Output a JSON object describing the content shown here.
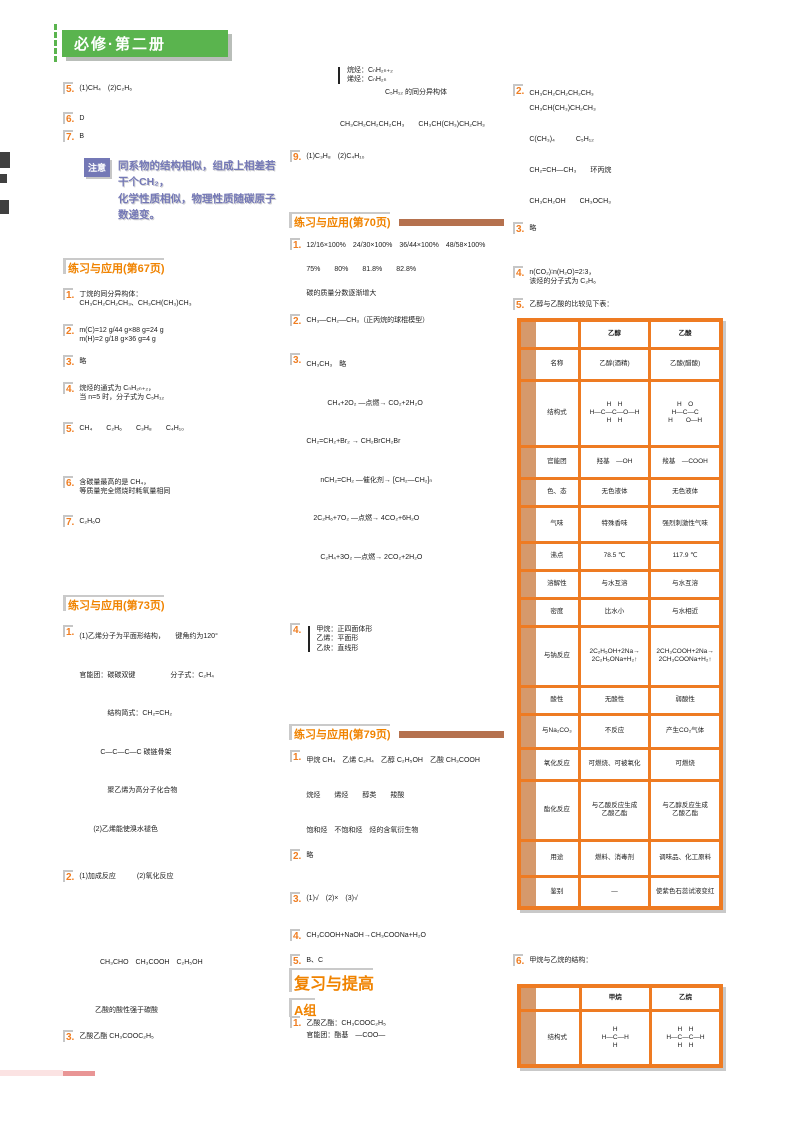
{
  "banner": {
    "title": "必修·第二册"
  },
  "colors": {
    "green": "#5ab44e",
    "orange": "#f07d20",
    "header_orange": "#f08300",
    "purple": "#7478b6",
    "table_border": "#ee7b22",
    "tan": "#d6996b",
    "bar_brown": "#b5714e"
  },
  "left": {
    "top_items": [
      {
        "num": "5.",
        "text": "(1)CH₄　(2)C₂H₆"
      },
      {
        "num": "6.",
        "text": "D"
      },
      {
        "num": "7.",
        "text": "B"
      }
    ],
    "note": {
      "tag": "注意",
      "text": "同系物的结构相似，组成上相差若干个CH₂，\n化学性质相似，物理性质随碳原子数递变。"
    },
    "sections": [
      {
        "header": "练习与应用(第67页)",
        "items": [
          {
            "num": "1.",
            "text": "丁烷的同分异构体：\nCH₃CH₂CH₂CH₃、CH₃CH(CH₃)CH₃"
          },
          {
            "num": "2.",
            "text": "m(C)=12 g/44 g×88 g=24 g\nm(H)=2 g/18 g×36 g=4 g"
          },
          {
            "num": "3.",
            "text": "略"
          },
          {
            "num": "4.",
            "text": "烷烃的通式为 CₙH₂ₙ₊₂，\n当 n=5 时，分子式为 C₅H₁₂"
          },
          {
            "num": "5.",
            "text": "CH₄　　C₂H₆　　C₃H₈　　C₄H₁₀"
          },
          {
            "num": "6.",
            "text": "含碳量最高的是 CH₄，\n等质量完全燃烧时耗氧量相同"
          },
          {
            "num": "7.",
            "text": "C₂H₆O"
          }
        ]
      },
      {
        "header": "练习与应用(第73页)",
        "items": [
          {
            "num": "1.",
            "text": "(1)乙烯分子为平面形结构，　　键角约为120°\n\n官能团：碳碳双键　　　　　分子式：C₂H₄\n\n　　　　结构简式：CH₂=CH₂\n\n　　　C—C—C—C 碳链骨架\n\n　　　　聚乙烯为高分子化合物\n\n　　(2)乙烯能使溴水褪色"
          },
          {
            "num": "2.",
            "text": "(1)加成反应　　　(2)氧化反应"
          }
        ]
      },
      {
        "header": "",
        "items": []
      }
    ],
    "extra": [
      "CH₃CHO　CH₃COOH　C₂H₅OH",
      "乙酸的酸性强于碳酸"
    ],
    "extra_item": {
      "num": "3.",
      "text": "乙酸乙酯 CH₃COOC₂H₅"
    }
  },
  "middle": {
    "intro_brace": "烷烃：CₙH₂ₙ₊₂\n烯烃：CₙH₂ₙ",
    "intro_formulas": "C₅H₁₂ 的同分异构体",
    "intro_row": "CH₃CH₂CH₂CH₂CH₃　　CH₃CH(CH₃)CH₂CH₃",
    "item9": {
      "num": "9.",
      "text": "(1)C₃H₈　(2)C₄H₁₀"
    },
    "sections": [
      {
        "header": "练习与应用(第70页)",
        "items": [
          {
            "num": "1.",
            "text": "12/16×100%　24/30×100%　36/44×100%　48/58×100%\n\n75%　　80%　　81.8%　　82.8%\n\n碳的质量分数逐渐增大"
          },
          {
            "num": "2.",
            "text": "CH₃—CH₂—CH₃（正丙烷的球棍模型）"
          },
          {
            "num": "3.",
            "text": "CH₃CH₃　略\n\n　　　CH₄+2O₂ —点燃→ CO₂+2H₂O\n\nCH₂=CH₂+Br₂ → CH₂BrCH₂Br\n\n　　nCH₂=CH₂ —催化剂→ [CH₂—CH₂]ₙ\n\n　2C₂H₆+7O₂ —点燃→ 4CO₂+6H₂O\n\n　　C₂H₄+3O₂ —点燃→ 2CO₂+2H₂O"
          },
          {
            "num": "4.",
            "brace": true,
            "text": "甲烷：正四面体形\n乙烯：平面形\n乙炔：直线形"
          }
        ]
      },
      {
        "header": "练习与应用(第79页)",
        "items": [
          {
            "num": "1.",
            "text": "甲烷 CH₄　乙烯 C₂H₄　乙醇 C₂H₅OH　乙酸 CH₃COOH\n\n烷烃　　烯烃　　醇类　　羧酸\n\n饱和烃　不饱和烃　烃的含氧衍生物"
          },
          {
            "num": "2.",
            "text": "略"
          },
          {
            "num": "3.",
            "text": "(1)√　(2)×　(3)√"
          },
          {
            "num": "4.",
            "text": "CH₃COOH+NaOH→CH₃COONa+H₂O"
          },
          {
            "num": "5.",
            "text": "B、C"
          }
        ]
      }
    ],
    "review_heading": {
      "line1": "复习与提高",
      "line2": "A组"
    },
    "review_items": [
      {
        "num": "1.",
        "text": "乙酸乙酯：CH₃COOC₂H₅\n官能团：酯基　—COO—"
      }
    ]
  },
  "right": {
    "items_top": [
      {
        "num": "2.",
        "text": "CH₃CH₂CH₂CH₂CH₃\nCH₃CH(CH₃)CH₂CH₃\n\nC(CH₃)₄　　　C₅H₁₂\n\nCH₂=CH—CH₃　　环丙烷\n\nCH₃CH₂OH　　CH₃OCH₃"
      },
      {
        "num": "3.",
        "text": "略"
      },
      {
        "num": "4.",
        "text": "n(CO₂)∶n(H₂O)=2∶3，\n该烃的分子式为 C₂H₆"
      },
      {
        "num": "5.",
        "text": "乙醇与乙酸的比较见下表："
      }
    ],
    "table1": {
      "headers": [
        "",
        "乙醇",
        "乙酸"
      ],
      "rows": [
        {
          "label": "名称",
          "c1": "乙醇(酒精)",
          "c2": "乙酸(醋酸)"
        },
        {
          "label": "结构式",
          "c1": "H　H\nH—C—C—O—H\nH　H",
          "c2": "H　O\nH—C—C\nH　　O—H"
        },
        {
          "label": "官能团",
          "c1": "羟基　—OH",
          "c2": "羧基　—COOH"
        },
        {
          "label": "色、态",
          "c1": "无色液体",
          "c2": "无色液体"
        },
        {
          "label": "气味",
          "c1": "特殊香味",
          "c2": "强烈刺激性气味"
        },
        {
          "label": "沸点",
          "c1": "78.5 ℃",
          "c2": "117.9 ℃"
        },
        {
          "label": "溶解性",
          "c1": "与水互溶",
          "c2": "与水互溶"
        },
        {
          "label": "密度",
          "c1": "比水小",
          "c2": "与水相近"
        },
        {
          "label": "与钠反应",
          "c1": "2C₂H₅OH+2Na→\n2C₂H₅ONa+H₂↑",
          "c2": "2CH₃COOH+2Na→\n2CH₃COONa+H₂↑"
        },
        {
          "label": "酸性",
          "c1": "无酸性",
          "c2": "弱酸性"
        },
        {
          "label": "与Na₂CO₃",
          "c1": "不反应",
          "c2": "产生CO₂气体"
        },
        {
          "label": "氧化反应",
          "c1": "可燃烧、可被氧化",
          "c2": "可燃烧"
        },
        {
          "label": "酯化反应",
          "c1": "与乙酸反应生成\n乙酸乙酯",
          "c2": "与乙醇反应生成\n乙酸乙酯"
        },
        {
          "label": "用途",
          "c1": "燃料、消毒剂",
          "c2": "调味品、化工原料"
        },
        {
          "label": "鉴别",
          "c1": "—",
          "c2": "使紫色石蕊试液变红"
        }
      ]
    },
    "item6": {
      "num": "6.",
      "text": "甲烷与乙烷的结构："
    },
    "table2": {
      "headers": [
        "",
        "甲烷",
        "乙烷"
      ],
      "rows": [
        {
          "label": "结构式",
          "c1": "H\nH—C—H\nH",
          "c2": "H　H\nH—C—C—H\nH　H"
        }
      ]
    }
  }
}
